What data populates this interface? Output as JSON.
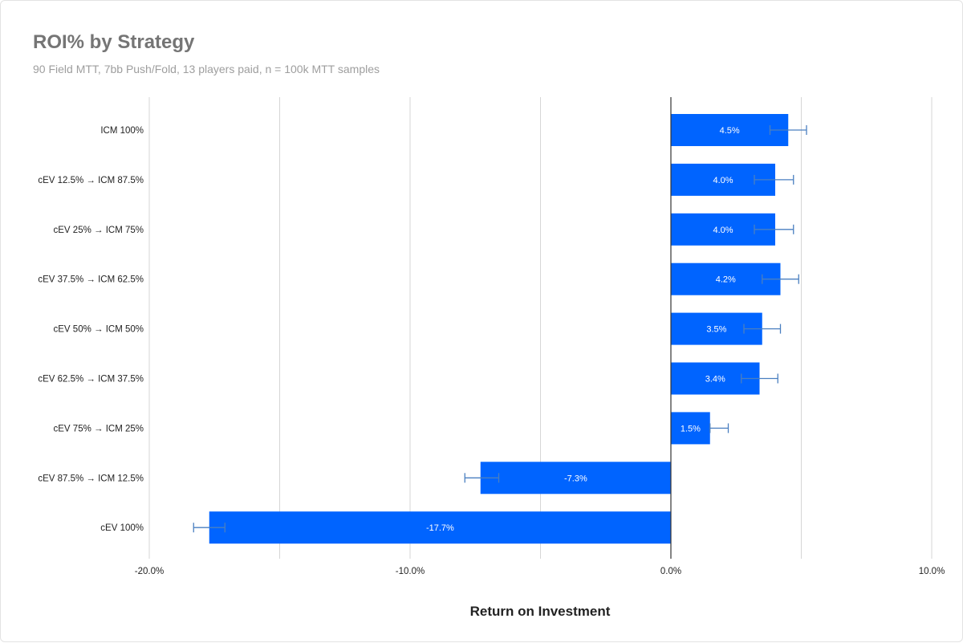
{
  "chart_data": {
    "type": "bar",
    "orientation": "horizontal",
    "title": "ROI% by Strategy",
    "subtitle": "90 Field MTT, 7bb Push/Fold, 13 players paid, n = 100k MTT samples",
    "xlabel": "Return on Investment",
    "ylabel": "",
    "categories": [
      "ICM 100%",
      "cEV 12.5% → ICM 87.5%",
      "cEV 25% → ICM 75%",
      "cEV 37.5% → ICM 62.5%",
      "cEV 50% → ICM 50%",
      "cEV 62.5% → ICM 37.5%",
      "cEV 75% → ICM 25%",
      "cEV 87.5% → ICM 12.5%",
      "cEV 100%"
    ],
    "values": [
      4.5,
      4.0,
      4.0,
      4.2,
      3.5,
      3.4,
      1.5,
      -7.3,
      -17.7
    ],
    "data_labels": [
      "4.5%",
      "4.0%",
      "4.0%",
      "4.2%",
      "3.5%",
      "3.4%",
      "1.5%",
      "-7.3%",
      "-17.7%"
    ],
    "error_bars": [
      [
        3.8,
        5.2
      ],
      [
        3.2,
        4.7
      ],
      [
        3.2,
        4.7
      ],
      [
        3.5,
        4.9
      ],
      [
        2.8,
        4.2
      ],
      [
        2.7,
        4.1
      ],
      [
        1.5,
        2.2
      ],
      [
        -7.9,
        -6.6
      ],
      [
        -18.3,
        -17.1
      ]
    ],
    "xlim": [
      -20,
      10
    ],
    "x_ticks": [
      -20,
      -10,
      0,
      10
    ],
    "x_tick_labels": [
      "-20.0%",
      "-10.0%",
      "0.0%",
      "10.0%"
    ],
    "grid": true,
    "legend": "none",
    "colors": {
      "bar": "#0064ff",
      "error_bar": "#4a7fc0",
      "grid": "#d6d6d6",
      "zero_line": "#333333",
      "data_label": "#ffffff"
    }
  }
}
